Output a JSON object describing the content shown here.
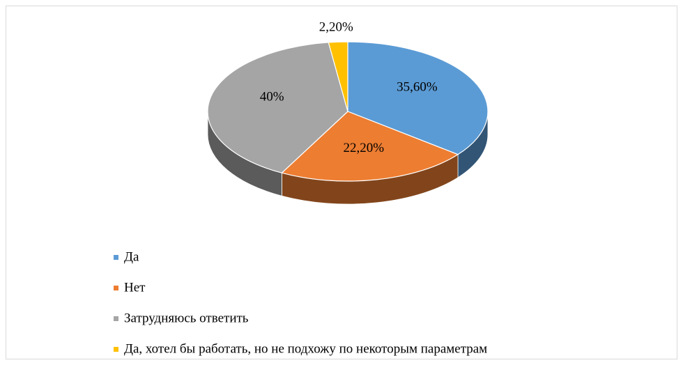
{
  "chart_data": {
    "type": "pie",
    "categories": [
      "Да",
      "Нет",
      "Затрудняюсь ответить",
      "Да, хотел бы работать, но не подхожу по некоторым параметрам"
    ],
    "values": [
      35.6,
      22.2,
      40,
      2.2
    ],
    "value_labels": [
      "35,60%",
      "22,20%",
      "40%",
      "2,20%"
    ],
    "colors": [
      "#5b9bd5",
      "#ed7d31",
      "#a5a5a5",
      "#ffc000"
    ],
    "legend": "bottom-left"
  }
}
